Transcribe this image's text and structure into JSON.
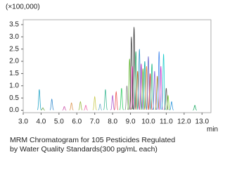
{
  "chart_data": {
    "type": "peaks",
    "y_unit": "(×100,000)",
    "x_unit": "min",
    "caption": [
      "MRM Chromatogram for 105 Pesticides Regulated",
      "by Water Quality Standards(300 pg/mL each)"
    ],
    "xlim": [
      3.0,
      13.5
    ],
    "ylim": [
      -0.1,
      3.7
    ],
    "xticks": [
      {
        "value": 3,
        "label": "3.0"
      },
      {
        "value": 4,
        "label": "4.0"
      },
      {
        "value": 5,
        "label": "5.0"
      },
      {
        "value": 6,
        "label": "6.0"
      },
      {
        "value": 7,
        "label": "7.0"
      },
      {
        "value": 8,
        "label": "8.0"
      },
      {
        "value": 9,
        "label": "9.0"
      },
      {
        "value": 10,
        "label": "10.0"
      },
      {
        "value": 11,
        "label": "11.0"
      },
      {
        "value": 12,
        "label": "12.0"
      },
      {
        "value": 13,
        "label": "13.0"
      }
    ],
    "yticks": [
      {
        "value": 0,
        "label": "0.0"
      },
      {
        "value": 0.5,
        "label": "0.5"
      },
      {
        "value": 1,
        "label": "1.0"
      },
      {
        "value": 1.5,
        "label": "1.5"
      },
      {
        "value": 2,
        "label": "2.0"
      },
      {
        "value": 2.5,
        "label": "2.5"
      },
      {
        "value": 3,
        "label": "3.0"
      },
      {
        "value": 3.5,
        "label": "3.5"
      }
    ],
    "x": [
      3.9,
      4.1,
      4.6,
      5.3,
      5.7,
      6.2,
      6.5,
      7.0,
      7.3,
      7.6,
      8.0,
      8.2,
      8.5,
      8.8,
      8.95,
      9.05,
      9.1,
      9.2,
      9.3,
      9.4,
      9.5,
      9.6,
      9.7,
      9.8,
      9.9,
      10.0,
      10.1,
      10.2,
      10.35,
      10.5,
      10.6,
      10.7,
      10.85,
      11.0,
      11.1,
      11.3,
      12.6
    ],
    "values": [
      0.85,
      0.1,
      0.45,
      0.15,
      0.3,
      0.35,
      0.2,
      0.55,
      0.25,
      0.85,
      0.6,
      0.75,
      0.9,
      1.0,
      2.1,
      3.0,
      1.8,
      3.4,
      2.4,
      1.6,
      2.5,
      1.9,
      1.7,
      2.0,
      1.8,
      2.2,
      1.5,
      1.9,
      1.6,
      1.4,
      2.4,
      1.8,
      2.3,
      0.9,
      0.6,
      0.35,
      0.2
    ],
    "colors": [
      "#2aa7c9",
      "#7a5",
      "#3a8fd0",
      "#c5a",
      "#d95",
      "#9b4",
      "#e6a",
      "#cc5",
      "#6ac",
      "#4b9",
      "#a5c",
      "#e55",
      "#3c6",
      "#888",
      "#6b3",
      "#444",
      "#d3a",
      "#333",
      "#2a6",
      "#c62",
      "#39c",
      "#b3b",
      "#5a2",
      "#1aa",
      "#e83",
      "#66c",
      "#c33",
      "#2b8",
      "#86d",
      "#a82",
      "#48e",
      "#d4c",
      "#2cc",
      "#555",
      "#7c3",
      "#39d",
      "#2a6"
    ]
  }
}
